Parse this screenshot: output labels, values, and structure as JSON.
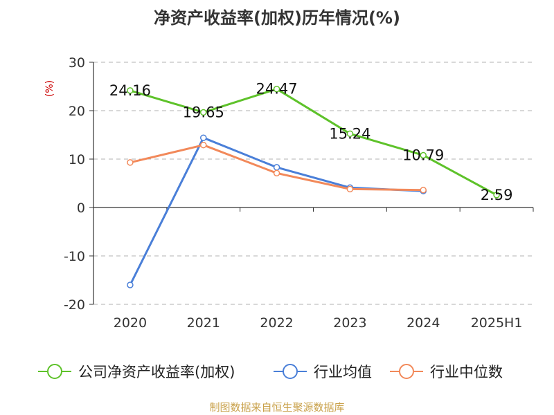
{
  "title": "净资产收益率(加权)历年情况(%)",
  "footer": "制图数据来自恒生聚源数据库",
  "colors": {
    "series_0": "#5ec22a",
    "series_1": "#4a7fd8",
    "series_2": "#f2895a",
    "grid": "#b0b0b0",
    "axis": "#333333",
    "unit": "#cc0000"
  },
  "chart_data": {
    "type": "line",
    "title": "净资产收益率(加权)历年情况(%)",
    "ylabel": "(%)",
    "xlabel": "",
    "categories": [
      "2020",
      "2021",
      "2022",
      "2023",
      "2024",
      "2025H1"
    ],
    "ylim": [
      -20,
      30
    ],
    "yticks": [
      30,
      20,
      10,
      0,
      -10,
      -20
    ],
    "grid": true,
    "legend_position": "bottom",
    "series": [
      {
        "name": "公司净资产收益率(加权)",
        "values": [
          24.16,
          19.65,
          24.47,
          15.24,
          10.79,
          2.59
        ],
        "data_labels": [
          "24.16",
          "19.65",
          "24.47",
          "15.24",
          "10.79",
          "2.59"
        ]
      },
      {
        "name": "行业均值",
        "values": [
          -16.0,
          14.4,
          8.3,
          4.1,
          3.4,
          null
        ]
      },
      {
        "name": "行业中位数",
        "values": [
          9.3,
          12.9,
          7.1,
          3.8,
          3.6,
          null
        ]
      }
    ]
  }
}
